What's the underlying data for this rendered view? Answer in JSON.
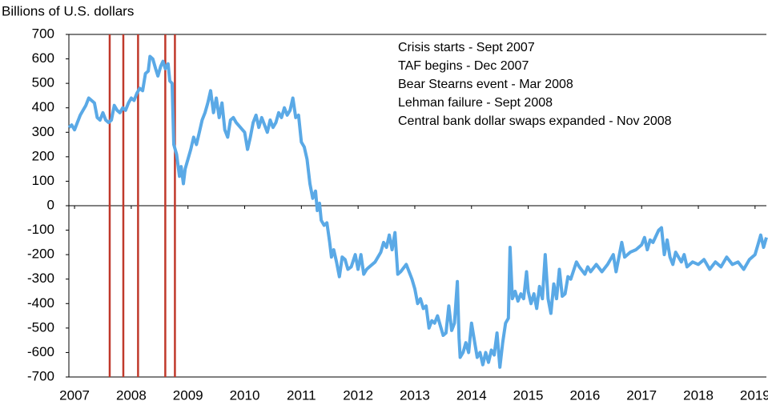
{
  "chart_data": {
    "type": "line",
    "title": "Billions of U.S. dollars",
    "annotations": [
      "Crisis starts - Sept 2007",
      "TAF begins - Dec 2007",
      "Bear Stearns event - Mar 2008",
      "Lehman failure - Sept 2008",
      "Central bank dollar swaps expanded - Nov 2008"
    ],
    "event_lines": {
      "color": "#c0392b",
      "x": [
        2007.62,
        2007.86,
        2008.12,
        2008.6,
        2008.77
      ]
    },
    "xlim": [
      2006.9,
      2019.2
    ],
    "xticks": [
      2007,
      2008,
      2009,
      2010,
      2011,
      2012,
      2013,
      2014,
      2015,
      2016,
      2017,
      2018,
      2019
    ],
    "ylim": [
      -700,
      700
    ],
    "yticks": [
      -700,
      -600,
      -500,
      -400,
      -300,
      -200,
      -100,
      0,
      100,
      200,
      300,
      400,
      500,
      600,
      700
    ],
    "x": [
      2006.9,
      2006.95,
      2007.0,
      2007.05,
      2007.1,
      2007.15,
      2007.2,
      2007.25,
      2007.3,
      2007.35,
      2007.4,
      2007.45,
      2007.5,
      2007.55,
      2007.6,
      2007.65,
      2007.7,
      2007.75,
      2007.8,
      2007.85,
      2007.9,
      2007.95,
      2008.0,
      2008.05,
      2008.1,
      2008.15,
      2008.2,
      2008.25,
      2008.3,
      2008.33,
      2008.38,
      2008.43,
      2008.47,
      2008.52,
      2008.56,
      2008.6,
      2008.65,
      2008.68,
      2008.72,
      2008.75,
      2008.8,
      2008.85,
      2008.88,
      2008.92,
      2008.95,
      2009.0,
      2009.05,
      2009.1,
      2009.15,
      2009.2,
      2009.25,
      2009.3,
      2009.35,
      2009.4,
      2009.45,
      2009.5,
      2009.55,
      2009.6,
      2009.65,
      2009.7,
      2009.75,
      2009.8,
      2009.85,
      2010.0,
      2010.05,
      2010.1,
      2010.15,
      2010.2,
      2010.25,
      2010.3,
      2010.35,
      2010.4,
      2010.45,
      2010.5,
      2010.55,
      2010.6,
      2010.65,
      2010.7,
      2010.75,
      2010.8,
      2010.85,
      2010.9,
      2010.95,
      2011.0,
      2011.05,
      2011.1,
      2011.15,
      2011.2,
      2011.25,
      2011.28,
      2011.32,
      2011.35,
      2011.4,
      2011.45,
      2011.5,
      2011.53,
      2011.57,
      2011.62,
      2011.67,
      2011.72,
      2011.77,
      2011.82,
      2011.88,
      2011.95,
      2012.0,
      2012.05,
      2012.1,
      2012.15,
      2012.2,
      2012.3,
      2012.4,
      2012.45,
      2012.5,
      2012.55,
      2012.6,
      2012.65,
      2012.7,
      2012.75,
      2012.85,
      2012.95,
      2013.0,
      2013.05,
      2013.1,
      2013.15,
      2013.2,
      2013.25,
      2013.3,
      2013.35,
      2013.4,
      2013.45,
      2013.5,
      2013.55,
      2013.6,
      2013.65,
      2013.7,
      2013.75,
      2013.78,
      2013.8,
      2013.85,
      2013.9,
      2013.95,
      2014.0,
      2014.05,
      2014.1,
      2014.15,
      2014.2,
      2014.25,
      2014.3,
      2014.35,
      2014.4,
      2014.45,
      2014.5,
      2014.55,
      2014.6,
      2014.65,
      2014.68,
      2014.72,
      2014.77,
      2014.82,
      2014.87,
      2014.92,
      2014.97,
      2015.0,
      2015.05,
      2015.1,
      2015.15,
      2015.2,
      2015.25,
      2015.3,
      2015.35,
      2015.4,
      2015.45,
      2015.5,
      2015.55,
      2015.6,
      2015.65,
      2015.7,
      2015.75,
      2015.85,
      2015.9,
      2016.0,
      2016.05,
      2016.1,
      2016.2,
      2016.3,
      2016.4,
      2016.5,
      2016.55,
      2016.65,
      2016.7,
      2016.8,
      2016.9,
      2017.0,
      2017.05,
      2017.1,
      2017.15,
      2017.2,
      2017.3,
      2017.35,
      2017.4,
      2017.45,
      2017.5,
      2017.55,
      2017.6,
      2017.7,
      2017.75,
      2017.8,
      2017.9,
      2018.0,
      2018.1,
      2018.2,
      2018.3,
      2018.4,
      2018.5,
      2018.6,
      2018.7,
      2018.8,
      2018.9,
      2019.0,
      2019.05,
      2019.1,
      2019.15,
      2019.2
    ],
    "series": [
      {
        "color": "#5aa9e6",
        "values": [
          320,
          330,
          310,
          340,
          370,
          390,
          410,
          440,
          430,
          420,
          360,
          350,
          380,
          350,
          340,
          350,
          410,
          390,
          380,
          400,
          390,
          420,
          440,
          430,
          460,
          480,
          470,
          540,
          550,
          610,
          600,
          560,
          530,
          570,
          590,
          560,
          580,
          510,
          500,
          250,
          210,
          120,
          160,
          90,
          150,
          190,
          230,
          280,
          250,
          300,
          350,
          380,
          420,
          470,
          380,
          440,
          360,
          420,
          310,
          280,
          350,
          360,
          340,
          300,
          230,
          280,
          340,
          370,
          320,
          360,
          330,
          300,
          350,
          320,
          340,
          380,
          360,
          400,
          370,
          390,
          440,
          360,
          370,
          260,
          240,
          190,
          90,
          30,
          60,
          -20,
          10,
          -60,
          -80,
          -70,
          -150,
          -210,
          -180,
          -230,
          -290,
          -210,
          -220,
          -260,
          -250,
          -200,
          -260,
          -200,
          -280,
          -260,
          -250,
          -230,
          -190,
          -150,
          -170,
          -120,
          -180,
          -110,
          -280,
          -270,
          -240,
          -300,
          -340,
          -400,
          -380,
          -420,
          -410,
          -500,
          -470,
          -480,
          -450,
          -490,
          -530,
          -520,
          -410,
          -510,
          -480,
          -310,
          -540,
          -620,
          -600,
          -560,
          -600,
          -480,
          -550,
          -620,
          -600,
          -650,
          -600,
          -640,
          -590,
          -610,
          -520,
          -660,
          -560,
          -480,
          -460,
          -170,
          -380,
          -350,
          -390,
          -360,
          -380,
          -270,
          -350,
          -400,
          -360,
          -420,
          -330,
          -380,
          -200,
          -380,
          -440,
          -320,
          -380,
          -260,
          -370,
          -360,
          -290,
          -300,
          -230,
          -250,
          -280,
          -250,
          -270,
          -240,
          -270,
          -240,
          -200,
          -270,
          -150,
          -210,
          -190,
          -180,
          -160,
          -130,
          -180,
          -140,
          -150,
          -100,
          -90,
          -200,
          -140,
          -210,
          -240,
          -190,
          -230,
          -200,
          -250,
          -230,
          -240,
          -220,
          -260,
          -230,
          -250,
          -210,
          -240,
          -230,
          -260,
          -220,
          -200,
          -160,
          -120,
          -170,
          -130
        ]
      }
    ]
  }
}
